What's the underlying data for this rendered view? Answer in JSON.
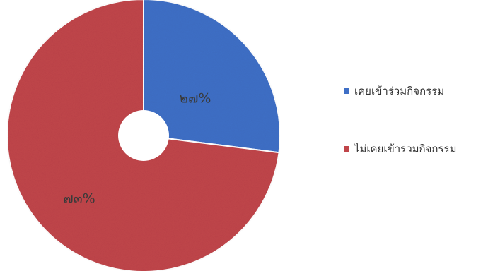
{
  "chart_data": {
    "type": "pie",
    "donut": true,
    "slices": [
      {
        "name": "เคยเข้าร่วมกิจกรรม",
        "value": 27,
        "label": "๒๗%",
        "color": "#3f6fc6"
      },
      {
        "name": "ไม่เคยเข้าร่วมกิจกรรม",
        "value": 73,
        "label": "๗๓%",
        "color": "#c0454a"
      }
    ],
    "start_angle": "12 o'clock",
    "direction": "clockwise",
    "legend_position": "right"
  }
}
